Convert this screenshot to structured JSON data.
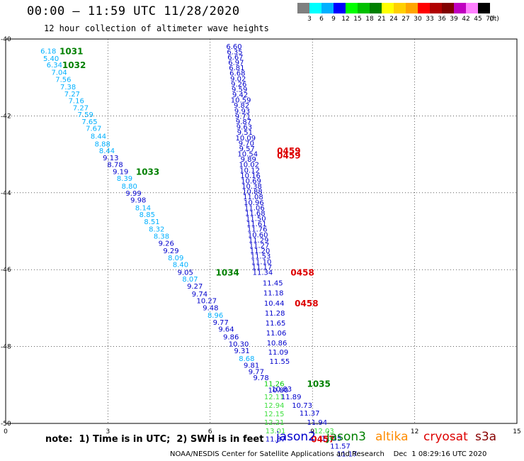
{
  "title": "00:00 – 11:59 UTC 11/28/2020",
  "subtitle": "12 hour collection of altimeter wave heights",
  "colorbar": {
    "unit": "(ft)",
    "colors": [
      "#7f7f7f",
      "#00ffff",
      "#00b0ff",
      "#0000ff",
      "#00ff00",
      "#00c000",
      "#008000",
      "#ffff00",
      "#ffd000",
      "#ffa500",
      "#ff0000",
      "#b00000",
      "#800000",
      "#c000c0",
      "#ff80ff",
      "#000000"
    ],
    "labels": [
      "3",
      "6",
      "9",
      "12",
      "15",
      "18",
      "21",
      "24",
      "27",
      "30",
      "33",
      "36",
      "39",
      "42",
      "45",
      "70"
    ]
  },
  "note": "note:  1) Time is in UTC;  2) SWH is in feet",
  "legend": [
    {
      "label": "jason2",
      "color": "#0000cc"
    },
    {
      "label": "jason3",
      "color": "#008000"
    },
    {
      "label": "altika",
      "color": "#ff8c00"
    },
    {
      "label": "cryosat",
      "color": "#dd0000"
    },
    {
      "label": "s3a",
      "color": "#880000"
    }
  ],
  "footer": "NOAA/NESDIS Center for Satellite Applications and Research    Dec  1 08:29:16 UTC 2020",
  "chart_data": {
    "type": "scatter",
    "xlim": [
      0,
      15
    ],
    "ylim": [
      -50,
      -40
    ],
    "x_ticks": [
      "0",
      "3",
      "6",
      "9",
      "12",
      "15"
    ],
    "y_ticks": [
      "-40",
      "-42",
      "-44",
      "-46",
      "-48",
      "-50"
    ],
    "grid": true,
    "colors": {
      "light": "#00b0ff",
      "dark": "#0000cc",
      "green": "#00cc00",
      "pale": "#40e040",
      "time": "#008000",
      "red": "#dd0000"
    },
    "track_a": [
      {
        "x": 1.02,
        "y": -40.3,
        "v": "6.18",
        "c": "light"
      },
      {
        "x": 1.1,
        "y": -40.5,
        "v": "5.40",
        "c": "light"
      },
      {
        "x": 1.2,
        "y": -40.66,
        "v": "6.34",
        "c": "light"
      },
      {
        "x": 1.34,
        "y": -40.86,
        "v": "7.04",
        "c": "light"
      },
      {
        "x": 1.46,
        "y": -41.04,
        "v": "7.56",
        "c": "light"
      },
      {
        "x": 1.6,
        "y": -41.24,
        "v": "7.38",
        "c": "light"
      },
      {
        "x": 1.72,
        "y": -41.42,
        "v": "7.27",
        "c": "light"
      },
      {
        "x": 1.84,
        "y": -41.6,
        "v": "7.16",
        "c": "light"
      },
      {
        "x": 1.97,
        "y": -41.78,
        "v": "7.27",
        "c": "light"
      },
      {
        "x": 2.11,
        "y": -41.96,
        "v": "7.59",
        "c": "light"
      },
      {
        "x": 2.23,
        "y": -42.14,
        "v": "7.65",
        "c": "light"
      },
      {
        "x": 2.35,
        "y": -42.32,
        "v": "7.67",
        "c": "light"
      },
      {
        "x": 2.49,
        "y": -42.52,
        "v": "8.44",
        "c": "light"
      },
      {
        "x": 2.61,
        "y": -42.72,
        "v": "8.88",
        "c": "light"
      },
      {
        "x": 2.74,
        "y": -42.9,
        "v": "8.44",
        "c": "light"
      },
      {
        "x": 2.85,
        "y": -43.08,
        "v": "9.13",
        "c": "dark"
      },
      {
        "x": 2.98,
        "y": -43.26,
        "v": "8.78",
        "c": "dark"
      },
      {
        "x": 3.14,
        "y": -43.44,
        "v": "9.19",
        "c": "dark"
      },
      {
        "x": 3.26,
        "y": -43.62,
        "v": "8.39",
        "c": "light"
      },
      {
        "x": 3.4,
        "y": -43.82,
        "v": "8.80",
        "c": "light"
      },
      {
        "x": 3.52,
        "y": -44.0,
        "v": "9.99",
        "c": "dark"
      },
      {
        "x": 3.66,
        "y": -44.18,
        "v": "9.98",
        "c": "dark"
      },
      {
        "x": 3.8,
        "y": -44.38,
        "v": "8.14",
        "c": "light"
      },
      {
        "x": 3.92,
        "y": -44.56,
        "v": "8.85",
        "c": "light"
      },
      {
        "x": 4.06,
        "y": -44.74,
        "v": "8.51",
        "c": "light"
      },
      {
        "x": 4.2,
        "y": -44.94,
        "v": "8.32",
        "c": "light"
      },
      {
        "x": 4.34,
        "y": -45.12,
        "v": "8.38",
        "c": "light"
      },
      {
        "x": 4.48,
        "y": -45.3,
        "v": "9.26",
        "c": "dark"
      },
      {
        "x": 4.62,
        "y": -45.5,
        "v": "9.29",
        "c": "dark"
      },
      {
        "x": 4.76,
        "y": -45.68,
        "v": "8.09",
        "c": "light"
      },
      {
        "x": 4.9,
        "y": -45.86,
        "v": "8.40",
        "c": "light"
      },
      {
        "x": 5.04,
        "y": -46.06,
        "v": "9.05",
        "c": "dark"
      },
      {
        "x": 5.18,
        "y": -46.24,
        "v": "8.07",
        "c": "light"
      },
      {
        "x": 5.32,
        "y": -46.42,
        "v": "9.27",
        "c": "dark"
      },
      {
        "x": 5.46,
        "y": -46.62,
        "v": "9.74",
        "c": "dark"
      },
      {
        "x": 5.6,
        "y": -46.8,
        "v": "10.27",
        "c": "dark"
      },
      {
        "x": 5.78,
        "y": -46.98,
        "v": "9.48",
        "c": "dark"
      },
      {
        "x": 5.92,
        "y": -47.18,
        "v": "8.96",
        "c": "light"
      },
      {
        "x": 6.08,
        "y": -47.36,
        "v": "9.77",
        "c": "dark"
      },
      {
        "x": 6.24,
        "y": -47.54,
        "v": "9.64",
        "c": "dark"
      },
      {
        "x": 6.38,
        "y": -47.74,
        "v": "9.86",
        "c": "dark"
      },
      {
        "x": 6.54,
        "y": -47.92,
        "v": "10.30",
        "c": "dark"
      },
      {
        "x": 6.7,
        "y": -48.1,
        "v": "9.31",
        "c": "dark"
      },
      {
        "x": 6.84,
        "y": -48.3,
        "v": "8.68",
        "c": "light"
      },
      {
        "x": 6.98,
        "y": -48.48,
        "v": "9.81",
        "c": "dark"
      },
      {
        "x": 7.12,
        "y": -48.64,
        "v": "9.77",
        "c": "dark"
      },
      {
        "x": 7.26,
        "y": -48.8,
        "v": "9.78",
        "c": "dark"
      },
      {
        "x": 7.58,
        "y": -48.96,
        "v": "11.26",
        "c": "green"
      },
      {
        "x": 7.7,
        "y": -49.12,
        "v": "10.80",
        "c": "dark"
      },
      {
        "x": 7.58,
        "y": -49.3,
        "v": "12.11",
        "c": "pale"
      },
      {
        "x": 7.58,
        "y": -49.52,
        "v": "12.94",
        "c": "pale"
      },
      {
        "x": 7.58,
        "y": -49.74,
        "v": "12.15",
        "c": "pale"
      },
      {
        "x": 7.58,
        "y": -49.96,
        "v": "12.21",
        "c": "pale"
      },
      {
        "x": 7.62,
        "y": -50.18,
        "v": "13.01",
        "c": "pale"
      },
      {
        "x": 7.62,
        "y": -50.4,
        "v": "11.87",
        "c": "dark"
      }
    ],
    "track_b": [
      {
        "x": 6.7,
        "y": -40.18,
        "v": "6.60"
      },
      {
        "x": 6.72,
        "y": -40.32,
        "v": "6.35"
      },
      {
        "x": 6.74,
        "y": -40.46,
        "v": "6.67"
      },
      {
        "x": 6.76,
        "y": -40.6,
        "v": "6.97"
      },
      {
        "x": 6.78,
        "y": -40.74,
        "v": "6.81"
      },
      {
        "x": 6.8,
        "y": -40.88,
        "v": "6.68"
      },
      {
        "x": 6.82,
        "y": -41.02,
        "v": "9.02"
      },
      {
        "x": 6.84,
        "y": -41.16,
        "v": "9.26"
      },
      {
        "x": 6.86,
        "y": -41.3,
        "v": "9.59"
      },
      {
        "x": 6.88,
        "y": -41.44,
        "v": "9.42"
      },
      {
        "x": 6.9,
        "y": -41.58,
        "v": "10.59"
      },
      {
        "x": 6.92,
        "y": -41.72,
        "v": "9.82"
      },
      {
        "x": 6.94,
        "y": -41.86,
        "v": "9.93"
      },
      {
        "x": 6.96,
        "y": -42.0,
        "v": "9.71"
      },
      {
        "x": 6.98,
        "y": -42.14,
        "v": "9.87"
      },
      {
        "x": 7.0,
        "y": -42.28,
        "v": "9.63"
      },
      {
        "x": 7.02,
        "y": -42.42,
        "v": "9.51"
      },
      {
        "x": 7.04,
        "y": -42.56,
        "v": "10.09"
      },
      {
        "x": 7.06,
        "y": -42.7,
        "v": "9.70"
      },
      {
        "x": 7.08,
        "y": -42.84,
        "v": "9.57"
      },
      {
        "x": 7.1,
        "y": -42.98,
        "v": "10.54"
      },
      {
        "x": 7.12,
        "y": -43.12,
        "v": "9.89"
      },
      {
        "x": 7.14,
        "y": -43.26,
        "v": "10.02"
      },
      {
        "x": 7.16,
        "y": -43.4,
        "v": "10.12"
      },
      {
        "x": 7.18,
        "y": -43.54,
        "v": "10.16"
      },
      {
        "x": 7.2,
        "y": -43.68,
        "v": "10.69"
      },
      {
        "x": 7.22,
        "y": -43.82,
        "v": "10.38"
      },
      {
        "x": 7.24,
        "y": -43.96,
        "v": "10.88"
      },
      {
        "x": 7.26,
        "y": -44.1,
        "v": "11.08"
      },
      {
        "x": 7.28,
        "y": -44.24,
        "v": "10.96"
      },
      {
        "x": 7.3,
        "y": -44.38,
        "v": "11.06"
      },
      {
        "x": 7.32,
        "y": -44.52,
        "v": "11.68"
      },
      {
        "x": 7.34,
        "y": -44.66,
        "v": "11.50"
      },
      {
        "x": 7.36,
        "y": -44.8,
        "v": "11.61"
      },
      {
        "x": 7.38,
        "y": -44.94,
        "v": "11.76"
      },
      {
        "x": 7.4,
        "y": -45.08,
        "v": "10.60"
      },
      {
        "x": 7.42,
        "y": -45.22,
        "v": "11.29"
      },
      {
        "x": 7.44,
        "y": -45.36,
        "v": "11.27"
      },
      {
        "x": 7.46,
        "y": -45.5,
        "v": "11.20"
      },
      {
        "x": 7.48,
        "y": -45.64,
        "v": "11.53"
      },
      {
        "x": 7.5,
        "y": -45.78,
        "v": "11.10"
      },
      {
        "x": 7.52,
        "y": -45.92,
        "v": "11.17"
      },
      {
        "x": 7.54,
        "y": -46.06,
        "v": "11.34"
      }
    ],
    "track_c": [
      {
        "x": 7.54,
        "y": -46.34,
        "v": "11.45"
      },
      {
        "x": 7.56,
        "y": -46.6,
        "v": "11.18"
      },
      {
        "x": 7.58,
        "y": -46.86,
        "v": "10.44"
      },
      {
        "x": 7.6,
        "y": -47.12,
        "v": "11.28"
      },
      {
        "x": 7.62,
        "y": -47.38,
        "v": "11.65"
      },
      {
        "x": 7.64,
        "y": -47.64,
        "v": "11.06"
      },
      {
        "x": 7.66,
        "y": -47.9,
        "v": "10.86"
      },
      {
        "x": 7.7,
        "y": -48.14,
        "v": "11.09"
      },
      {
        "x": 7.74,
        "y": -48.38,
        "v": "11.55"
      },
      {
        "x": 7.8,
        "y": -49.1,
        "v": "10.83"
      },
      {
        "x": 8.08,
        "y": -49.3,
        "v": "11.89"
      },
      {
        "x": 8.4,
        "y": -49.52,
        "v": "10.73"
      },
      {
        "x": 8.62,
        "y": -49.72,
        "v": "11.37"
      },
      {
        "x": 8.84,
        "y": -49.96,
        "v": "11.94"
      },
      {
        "x": 9.26,
        "y": -50.38,
        "v": "11.55"
      },
      {
        "x": 9.52,
        "y": -50.58,
        "v": "11.57"
      },
      {
        "x": 9.72,
        "y": -50.78,
        "v": "11.17"
      }
    ],
    "track_c_green": [
      {
        "x": 9.04,
        "y": -50.18,
        "v": "12.03",
        "c": "pale"
      }
    ],
    "time_labels": [
      {
        "x": 1.58,
        "y": -40.3,
        "v": "1031",
        "c": "time"
      },
      {
        "x": 1.66,
        "y": -40.66,
        "v": "1032",
        "c": "time"
      },
      {
        "x": 3.82,
        "y": -43.44,
        "v": "1033",
        "c": "time"
      },
      {
        "x": 6.16,
        "y": -46.06,
        "v": "1034",
        "c": "time"
      },
      {
        "x": 8.84,
        "y": -48.96,
        "v": "1035",
        "c": "time"
      },
      {
        "x": 7.96,
        "y": -42.9,
        "v": "0459",
        "c": "red"
      },
      {
        "x": 7.96,
        "y": -43.02,
        "v": "0459",
        "c": "red"
      },
      {
        "x": 8.36,
        "y": -46.06,
        "v": "0458",
        "c": "red"
      },
      {
        "x": 8.48,
        "y": -46.86,
        "v": "0458",
        "c": "red"
      },
      {
        "x": 8.96,
        "y": -50.4,
        "v": "0457",
        "c": "red"
      }
    ]
  }
}
